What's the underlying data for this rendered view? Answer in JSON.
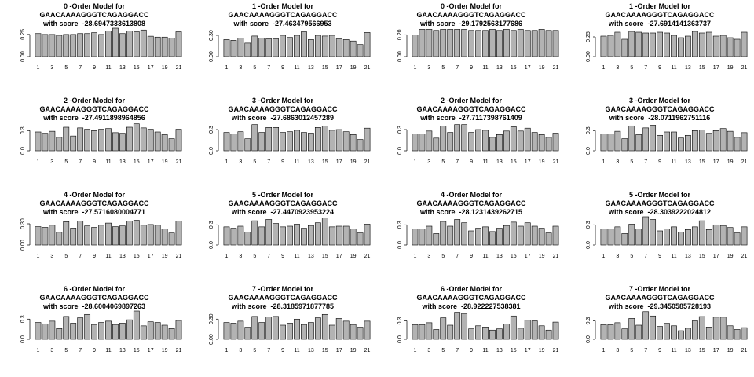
{
  "chart_data": [
    {
      "type": "bar",
      "title_line1": "0 -Order Model for",
      "title_line2": "GAACAAAAGGGTCAGAGGACC",
      "title_line3": "with score  -28.6947333613808",
      "categories": [
        "1",
        "2",
        "3",
        "4",
        "5",
        "6",
        "7",
        "8",
        "9",
        "10",
        "11",
        "12",
        "13",
        "14",
        "15",
        "16",
        "17",
        "18",
        "19",
        "20",
        "21"
      ],
      "x_tick_labels": [
        "1",
        "3",
        "5",
        "7",
        "9",
        "11",
        "13",
        "15",
        "17",
        "19",
        "21"
      ],
      "yticks": [
        "0.00",
        "0.25"
      ],
      "ylim": [
        0,
        0.32
      ],
      "values": [
        0.26,
        0.25,
        0.25,
        0.24,
        0.25,
        0.25,
        0.26,
        0.26,
        0.27,
        0.25,
        0.29,
        0.32,
        0.26,
        0.29,
        0.28,
        0.3,
        0.23,
        0.22,
        0.22,
        0.21,
        0.28
      ]
    },
    {
      "type": "bar",
      "title_line1": "1 -Order Model for",
      "title_line2": "GAACAAAAGGGTCAGAGGACC",
      "title_line3": "with score  -27.463479566953",
      "categories": [
        "1",
        "2",
        "3",
        "4",
        "5",
        "6",
        "7",
        "8",
        "9",
        "10",
        "11",
        "12",
        "13",
        "14",
        "15",
        "16",
        "17",
        "18",
        "19",
        "20",
        "21"
      ],
      "x_tick_labels": [
        "1",
        "3",
        "5",
        "7",
        "9",
        "11",
        "13",
        "15",
        "17",
        "19",
        "21"
      ],
      "yticks": [
        "0.00",
        "0.30"
      ],
      "ylim": [
        0,
        0.4
      ],
      "values": [
        0.24,
        0.23,
        0.26,
        0.19,
        0.29,
        0.26,
        0.25,
        0.25,
        0.3,
        0.27,
        0.3,
        0.35,
        0.24,
        0.3,
        0.29,
        0.3,
        0.25,
        0.24,
        0.22,
        0.17,
        0.34
      ]
    },
    {
      "type": "bar",
      "title_line1": "0 -Order Model for",
      "title_line2": "GAACAAAAGGGTCAGAGGACC",
      "title_line3": "with score  -29.1792563177686",
      "categories": [
        "1",
        "2",
        "3",
        "4",
        "5",
        "6",
        "7",
        "8",
        "9",
        "10",
        "11",
        "12",
        "13",
        "14",
        "15",
        "16",
        "17",
        "18",
        "19",
        "20",
        "21"
      ],
      "x_tick_labels": [
        "1",
        "3",
        "5",
        "7",
        "9",
        "11",
        "13",
        "15",
        "17",
        "19",
        "21"
      ],
      "yticks": [
        "0.00",
        "0.20"
      ],
      "ylim": [
        0,
        0.26
      ],
      "values": [
        0.2,
        0.25,
        0.25,
        0.24,
        0.25,
        0.25,
        0.25,
        0.25,
        0.24,
        0.24,
        0.24,
        0.25,
        0.24,
        0.25,
        0.24,
        0.25,
        0.24,
        0.24,
        0.25,
        0.24,
        0.24
      ]
    },
    {
      "type": "bar",
      "title_line1": "1 -Order Model for",
      "title_line2": "GAACAAAAGGGTCAGAGGACC",
      "title_line3": "with score  -27.6914141363737",
      "categories": [
        "1",
        "2",
        "3",
        "4",
        "5",
        "6",
        "7",
        "8",
        "9",
        "10",
        "11",
        "12",
        "13",
        "14",
        "15",
        "16",
        "17",
        "18",
        "19",
        "20",
        "21"
      ],
      "x_tick_labels": [
        "1",
        "3",
        "5",
        "7",
        "9",
        "11",
        "13",
        "15",
        "17",
        "19",
        "21"
      ],
      "yticks": [
        "0.00",
        "0.25"
      ],
      "ylim": [
        0,
        0.36
      ],
      "values": [
        0.26,
        0.27,
        0.31,
        0.22,
        0.32,
        0.31,
        0.3,
        0.3,
        0.31,
        0.3,
        0.27,
        0.24,
        0.26,
        0.32,
        0.3,
        0.31,
        0.26,
        0.27,
        0.24,
        0.22,
        0.31
      ]
    },
    {
      "type": "bar",
      "title_line1": "2 -Order Model for",
      "title_line2": "GAACAAAAGGGTCAGAGGACC",
      "title_line3": "with score  -27.4911898964856",
      "categories": [
        "1",
        "2",
        "3",
        "4",
        "5",
        "6",
        "7",
        "8",
        "9",
        "10",
        "11",
        "12",
        "13",
        "14",
        "15",
        "16",
        "17",
        "18",
        "19",
        "20",
        "21"
      ],
      "x_tick_labels": [
        "1",
        "3",
        "5",
        "7",
        "9",
        "11",
        "13",
        "15",
        "17",
        "19",
        "21"
      ],
      "yticks": [
        "0.0",
        "0.3"
      ],
      "ylim": [
        0,
        0.42
      ],
      "values": [
        0.28,
        0.26,
        0.29,
        0.2,
        0.35,
        0.22,
        0.34,
        0.32,
        0.3,
        0.32,
        0.33,
        0.27,
        0.26,
        0.35,
        0.4,
        0.34,
        0.32,
        0.28,
        0.24,
        0.18,
        0.32
      ]
    },
    {
      "type": "bar",
      "title_line1": "3 -Order Model for",
      "title_line2": "GAACAAAAGGGTCAGAGGACC",
      "title_line3": "with score  -27.6863012457289",
      "categories": [
        "1",
        "2",
        "3",
        "4",
        "5",
        "6",
        "7",
        "8",
        "9",
        "10",
        "11",
        "12",
        "13",
        "14",
        "15",
        "16",
        "17",
        "18",
        "19",
        "20",
        "21"
      ],
      "x_tick_labels": [
        "1",
        "3",
        "5",
        "7",
        "9",
        "11",
        "13",
        "15",
        "17",
        "19",
        "21"
      ],
      "yticks": [
        "0.0",
        "0.3"
      ],
      "ylim": [
        0,
        0.4
      ],
      "values": [
        0.26,
        0.24,
        0.27,
        0.17,
        0.37,
        0.26,
        0.33,
        0.33,
        0.26,
        0.27,
        0.29,
        0.26,
        0.25,
        0.33,
        0.35,
        0.29,
        0.3,
        0.27,
        0.23,
        0.16,
        0.32
      ]
    },
    {
      "type": "bar",
      "title_line1": "2 -Order Model for",
      "title_line2": "GAACAAAAGGGTCAGAGGACC",
      "title_line3": "with score  -27.7117398761409",
      "categories": [
        "1",
        "2",
        "3",
        "4",
        "5",
        "6",
        "7",
        "8",
        "9",
        "10",
        "11",
        "12",
        "13",
        "14",
        "15",
        "16",
        "17",
        "18",
        "19",
        "20",
        "21"
      ],
      "x_tick_labels": [
        "1",
        "3",
        "5",
        "7",
        "9",
        "11",
        "13",
        "15",
        "17",
        "19",
        "21"
      ],
      "yticks": [
        "0.0",
        "0.3"
      ],
      "ylim": [
        0,
        0.4
      ],
      "values": [
        0.24,
        0.24,
        0.28,
        0.18,
        0.35,
        0.26,
        0.37,
        0.37,
        0.26,
        0.3,
        0.29,
        0.19,
        0.23,
        0.28,
        0.34,
        0.28,
        0.32,
        0.26,
        0.23,
        0.19,
        0.25
      ]
    },
    {
      "type": "bar",
      "title_line1": "3 -Order Model for",
      "title_line2": "GAACAAAAGGGTCAGAGGACC",
      "title_line3": "with score  -28.0711962751116",
      "categories": [
        "1",
        "2",
        "3",
        "4",
        "5",
        "6",
        "7",
        "8",
        "9",
        "10",
        "11",
        "12",
        "13",
        "14",
        "15",
        "16",
        "17",
        "18",
        "19",
        "20",
        "21"
      ],
      "x_tick_labels": [
        "1",
        "3",
        "5",
        "7",
        "9",
        "11",
        "13",
        "15",
        "17",
        "19",
        "21"
      ],
      "yticks": [
        "0.0",
        "0.3"
      ],
      "ylim": [
        0,
        0.42
      ],
      "values": [
        0.25,
        0.25,
        0.29,
        0.18,
        0.37,
        0.24,
        0.34,
        0.38,
        0.23,
        0.28,
        0.28,
        0.19,
        0.23,
        0.3,
        0.31,
        0.26,
        0.3,
        0.33,
        0.29,
        0.2,
        0.27
      ]
    },
    {
      "type": "bar",
      "title_line1": "4 -Order Model for",
      "title_line2": "GAACAAAAGGGTCAGAGGACC",
      "title_line3": "with score  -27.5716080004771",
      "categories": [
        "1",
        "2",
        "3",
        "4",
        "5",
        "6",
        "7",
        "8",
        "9",
        "10",
        "11",
        "12",
        "13",
        "14",
        "15",
        "16",
        "17",
        "18",
        "19",
        "20",
        "21"
      ],
      "x_tick_labels": [
        "1",
        "3",
        "5",
        "7",
        "9",
        "11",
        "13",
        "15",
        "17",
        "19",
        "21"
      ],
      "yticks": [
        "0.00",
        "0.30"
      ],
      "ylim": [
        0,
        0.4
      ],
      "values": [
        0.26,
        0.25,
        0.28,
        0.18,
        0.33,
        0.24,
        0.34,
        0.27,
        0.25,
        0.28,
        0.31,
        0.26,
        0.27,
        0.34,
        0.35,
        0.28,
        0.29,
        0.28,
        0.23,
        0.17,
        0.34
      ]
    },
    {
      "type": "bar",
      "title_line1": "5 -Order Model for",
      "title_line2": "GAACAAAAGGGTCAGAGGACC",
      "title_line3": "with score  -27.4470923953224",
      "categories": [
        "1",
        "2",
        "3",
        "4",
        "5",
        "6",
        "7",
        "8",
        "9",
        "10",
        "11",
        "12",
        "13",
        "14",
        "15",
        "16",
        "17",
        "18",
        "19",
        "20",
        "21"
      ],
      "x_tick_labels": [
        "1",
        "3",
        "5",
        "7",
        "9",
        "11",
        "13",
        "15",
        "17",
        "19",
        "21"
      ],
      "yticks": [
        "0.0",
        "0.3"
      ],
      "ylim": [
        0,
        0.42
      ],
      "values": [
        0.27,
        0.25,
        0.28,
        0.19,
        0.36,
        0.27,
        0.38,
        0.32,
        0.27,
        0.28,
        0.31,
        0.25,
        0.29,
        0.33,
        0.4,
        0.27,
        0.28,
        0.28,
        0.24,
        0.18,
        0.31
      ]
    },
    {
      "type": "bar",
      "title_line1": "4 -Order Model for",
      "title_line2": "GAACAAAAGGGTCAGAGGACC",
      "title_line3": "with score  -28.1231439262715",
      "categories": [
        "1",
        "2",
        "3",
        "4",
        "5",
        "6",
        "7",
        "8",
        "9",
        "10",
        "11",
        "12",
        "13",
        "14",
        "15",
        "16",
        "17",
        "18",
        "19",
        "20",
        "21"
      ],
      "x_tick_labels": [
        "1",
        "3",
        "5",
        "7",
        "9",
        "11",
        "13",
        "15",
        "17",
        "19",
        "21"
      ],
      "yticks": [
        "0.0",
        "0.3"
      ],
      "ylim": [
        0,
        0.42
      ],
      "values": [
        0.24,
        0.24,
        0.28,
        0.17,
        0.35,
        0.28,
        0.38,
        0.33,
        0.21,
        0.25,
        0.27,
        0.2,
        0.25,
        0.29,
        0.34,
        0.28,
        0.33,
        0.28,
        0.25,
        0.18,
        0.28
      ]
    },
    {
      "type": "bar",
      "title_line1": "5 -Order Model for",
      "title_line2": "GAACAAAAGGGTCAGAGGACC",
      "title_line3": "with score  -28.3039222024812",
      "categories": [
        "1",
        "2",
        "3",
        "4",
        "5",
        "6",
        "7",
        "8",
        "9",
        "10",
        "11",
        "12",
        "13",
        "14",
        "15",
        "16",
        "17",
        "18",
        "19",
        "20",
        "21"
      ],
      "x_tick_labels": [
        "1",
        "3",
        "5",
        "7",
        "9",
        "11",
        "13",
        "15",
        "17",
        "19",
        "21"
      ],
      "yticks": [
        "0.0",
        "0.3"
      ],
      "ylim": [
        0,
        0.42
      ],
      "values": [
        0.24,
        0.24,
        0.27,
        0.17,
        0.31,
        0.24,
        0.42,
        0.38,
        0.21,
        0.24,
        0.27,
        0.19,
        0.23,
        0.27,
        0.36,
        0.23,
        0.3,
        0.29,
        0.26,
        0.18,
        0.27
      ]
    },
    {
      "type": "bar",
      "title_line1": "6 -Order Model for",
      "title_line2": "GAACAAAAGGGTCAGAGGACC",
      "title_line3": "with score  -28.6004069897263",
      "categories": [
        "1",
        "2",
        "3",
        "4",
        "5",
        "6",
        "7",
        "8",
        "9",
        "10",
        "11",
        "12",
        "13",
        "14",
        "15",
        "16",
        "17",
        "18",
        "19",
        "20",
        "21"
      ],
      "x_tick_labels": [
        "1",
        "3",
        "5",
        "7",
        "9",
        "11",
        "13",
        "15",
        "17",
        "19",
        "21"
      ],
      "yticks": [
        "0.0",
        "0.3"
      ],
      "ylim": [
        0,
        0.42
      ],
      "values": [
        0.25,
        0.23,
        0.27,
        0.16,
        0.34,
        0.24,
        0.32,
        0.37,
        0.22,
        0.25,
        0.27,
        0.22,
        0.24,
        0.29,
        0.42,
        0.2,
        0.26,
        0.25,
        0.21,
        0.16,
        0.28
      ]
    },
    {
      "type": "bar",
      "title_line1": "7 -Order Model for",
      "title_line2": "GAACAAAAGGGTCAGAGGACC",
      "title_line3": "with score  -28.3185971877785",
      "categories": [
        "1",
        "2",
        "3",
        "4",
        "5",
        "6",
        "7",
        "8",
        "9",
        "10",
        "11",
        "12",
        "13",
        "14",
        "15",
        "16",
        "17",
        "18",
        "19",
        "20",
        "21"
      ],
      "x_tick_labels": [
        "1",
        "3",
        "5",
        "7",
        "9",
        "11",
        "13",
        "15",
        "17",
        "19",
        "21"
      ],
      "yticks": [
        "0.00",
        "0.30"
      ],
      "ylim": [
        0,
        0.42
      ],
      "values": [
        0.25,
        0.24,
        0.27,
        0.18,
        0.34,
        0.25,
        0.33,
        0.34,
        0.21,
        0.24,
        0.3,
        0.22,
        0.25,
        0.32,
        0.37,
        0.21,
        0.31,
        0.27,
        0.22,
        0.18,
        0.27
      ]
    },
    {
      "type": "bar",
      "title_line1": "6 -Order Model for",
      "title_line2": "GAACAAAAGGGTCAGAGGACC",
      "title_line3": "with score  -28.922227538381",
      "categories": [
        "1",
        "2",
        "3",
        "4",
        "5",
        "6",
        "7",
        "8",
        "9",
        "10",
        "11",
        "12",
        "13",
        "14",
        "15",
        "16",
        "17",
        "18",
        "19",
        "20",
        "21"
      ],
      "x_tick_labels": [
        "1",
        "3",
        "5",
        "7",
        "9",
        "11",
        "13",
        "15",
        "17",
        "19",
        "21"
      ],
      "yticks": [
        "0.0",
        "0.3"
      ],
      "ylim": [
        0,
        0.46
      ],
      "values": [
        0.24,
        0.24,
        0.27,
        0.16,
        0.35,
        0.23,
        0.44,
        0.42,
        0.17,
        0.22,
        0.2,
        0.15,
        0.17,
        0.25,
        0.38,
        0.18,
        0.31,
        0.3,
        0.22,
        0.15,
        0.28
      ]
    },
    {
      "type": "bar",
      "title_line1": "7 -Order Model for",
      "title_line2": "GAACAAAAGGGTCAGAGGACC",
      "title_line3": "with score  -29.3450585728193",
      "categories": [
        "1",
        "2",
        "3",
        "4",
        "5",
        "6",
        "7",
        "8",
        "9",
        "10",
        "11",
        "12",
        "13",
        "14",
        "15",
        "16",
        "17",
        "18",
        "19",
        "20",
        "21"
      ],
      "x_tick_labels": [
        "1",
        "3",
        "5",
        "7",
        "9",
        "11",
        "13",
        "15",
        "17",
        "19",
        "21"
      ],
      "yticks": [
        "0.0",
        "0.3"
      ],
      "ylim": [
        0,
        0.46
      ],
      "values": [
        0.24,
        0.24,
        0.27,
        0.17,
        0.34,
        0.23,
        0.45,
        0.38,
        0.21,
        0.26,
        0.22,
        0.14,
        0.18,
        0.3,
        0.37,
        0.2,
        0.36,
        0.36,
        0.22,
        0.16,
        0.19
      ]
    }
  ],
  "colors": {
    "bar_fill": "#b3b3b3",
    "bar_stroke": "#000000",
    "axis": "#000000"
  }
}
